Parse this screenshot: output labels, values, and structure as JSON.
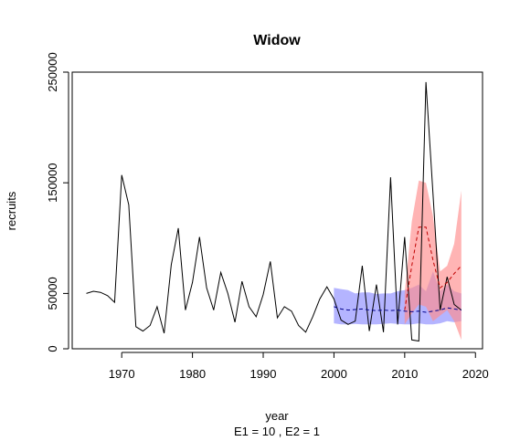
{
  "chart_data": {
    "type": "line",
    "title": "Widow",
    "xlabel": "year",
    "ylabel": "recruits",
    "subtitle": "E1 = 10 , E2 = 1",
    "xlim": [
      1963,
      2021
    ],
    "ylim": [
      0,
      250000
    ],
    "x_ticks": [
      1970,
      1980,
      1990,
      2000,
      2010,
      2020
    ],
    "y_ticks": [
      0,
      50000,
      150000,
      250000
    ],
    "x_tick_labels": [
      "1970",
      "1980",
      "1990",
      "2000",
      "2010",
      "2020"
    ],
    "y_tick_labels": [
      "0",
      "50000",
      "150000",
      "250000"
    ],
    "grid": false,
    "colors": {
      "observed": "#000000",
      "blue_band": "#8c8cff",
      "red_band": "#ff8c8c",
      "blue_line": "#00008b",
      "red_line": "#c00000"
    },
    "series": [
      {
        "style": "solid",
        "x": [
          1965,
          1966,
          1967,
          1968,
          1969,
          1970,
          1971,
          1972,
          1973,
          1974,
          1975,
          1976,
          1977,
          1978,
          1979,
          1980,
          1981,
          1982,
          1983,
          1984,
          1985,
          1986,
          1987,
          1988,
          1989,
          1990,
          1991,
          1992,
          1993,
          1994,
          1995,
          1996,
          1997,
          1998,
          1999,
          2000,
          2001,
          2002,
          2003,
          2004,
          2005,
          2006,
          2007,
          2008,
          2009,
          2010,
          2011,
          2012,
          2013,
          2014,
          2015,
          2016,
          2017,
          2018
        ],
        "values": [
          50000,
          52000,
          51000,
          48000,
          42000,
          157000,
          130000,
          20000,
          16000,
          21000,
          38000,
          14000,
          76000,
          109000,
          35000,
          60000,
          101000,
          55000,
          35000,
          69000,
          50000,
          24000,
          61000,
          38000,
          29000,
          49000,
          79000,
          28000,
          38000,
          34000,
          21000,
          15000,
          29000,
          45000,
          56000,
          45000,
          26000,
          22000,
          25000,
          75000,
          16000,
          58000,
          15000,
          155000,
          22000,
          101000,
          8000,
          7000,
          241000,
          140000,
          35000,
          65000,
          40000,
          35000
        ]
      },
      {
        "style": "dashed",
        "x": [
          2000,
          2001,
          2002,
          2003,
          2004,
          2005,
          2006,
          2007,
          2008,
          2009,
          2010,
          2011,
          2012,
          2013,
          2014,
          2015,
          2016,
          2017,
          2018
        ],
        "values": [
          38000,
          36000,
          35000,
          35500,
          36000,
          35000,
          34500,
          35000,
          34500,
          35000,
          34000,
          33500,
          34000,
          33000,
          34000,
          35000,
          37000,
          36000,
          35000
        ],
        "band_low": [
          23000,
          22000,
          22000,
          22500,
          22000,
          22000,
          22000,
          22500,
          23000,
          22500,
          22000,
          22000,
          23000,
          22000,
          22000,
          23000,
          25000,
          24000,
          25000
        ],
        "band_high": [
          55000,
          54000,
          53000,
          50000,
          51000,
          51000,
          49500,
          50000,
          50000,
          52000,
          53000,
          55000,
          58000,
          52000,
          70000,
          52000,
          58000,
          52000,
          50000
        ]
      },
      {
        "style": "dashed",
        "x": [
          2010,
          2011,
          2012,
          2013,
          2014,
          2015,
          2016,
          2017,
          2018
        ],
        "values": [
          35000,
          75000,
          110000,
          110000,
          80000,
          55000,
          60000,
          68000,
          75000
        ],
        "band_low": [
          22000,
          32000,
          40000,
          38000,
          25000,
          30000,
          35000,
          25000,
          8000
        ],
        "band_high": [
          50000,
          115000,
          152000,
          150000,
          120000,
          70000,
          75000,
          95000,
          143000
        ]
      }
    ]
  }
}
